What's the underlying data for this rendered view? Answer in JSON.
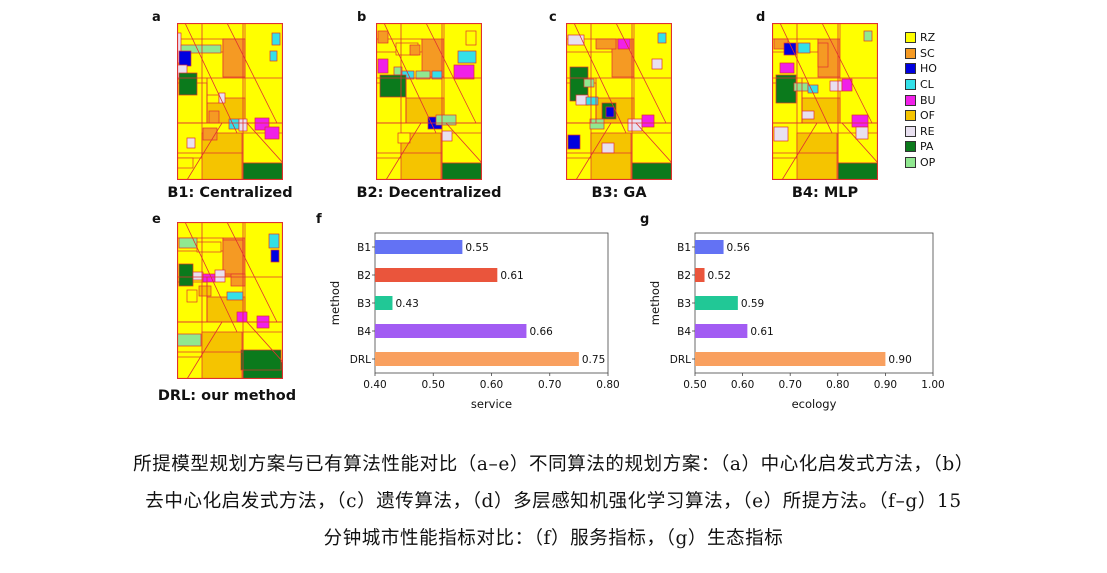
{
  "panels": {
    "maps": [
      {
        "letter": "a",
        "title": "B1: Centralized"
      },
      {
        "letter": "b",
        "title": "B2: Decentralized"
      },
      {
        "letter": "c",
        "title": "B3: GA"
      },
      {
        "letter": "d",
        "title": "B4: MLP"
      },
      {
        "letter": "e",
        "title": "DRL: our method"
      }
    ],
    "bar_letters": {
      "f": "f",
      "g": "g"
    }
  },
  "legend": [
    {
      "code": "RZ",
      "color": "#ffff00"
    },
    {
      "code": "SC",
      "color": "#f59a23"
    },
    {
      "code": "HO",
      "color": "#0000e0"
    },
    {
      "code": "CL",
      "color": "#33e0e8"
    },
    {
      "code": "BU",
      "color": "#f020e8"
    },
    {
      "code": "OF",
      "color": "#f5c400"
    },
    {
      "code": "RE",
      "color": "#e8e0f0"
    },
    {
      "code": "PA",
      "color": "#0b7a1c"
    },
    {
      "code": "OP",
      "color": "#90e890"
    }
  ],
  "chart_data": [
    {
      "type": "bar",
      "orientation": "horizontal",
      "categories": [
        "B1",
        "B2",
        "B3",
        "B4",
        "DRL"
      ],
      "values": [
        0.55,
        0.61,
        0.43,
        0.66,
        0.75
      ],
      "value_labels": [
        "0.55",
        "0.61",
        "0.43",
        "0.66",
        "0.75"
      ],
      "colors": [
        "#6372f4",
        "#ea553c",
        "#21c896",
        "#a25cf3",
        "#f9a05f"
      ],
      "xlabel": "service",
      "ylabel": "method",
      "xlim": [
        0.4,
        0.8
      ],
      "xticks": [
        "0.40",
        "0.50",
        "0.60",
        "0.70",
        "0.80"
      ],
      "grid": false,
      "legend": "none"
    },
    {
      "type": "bar",
      "orientation": "horizontal",
      "categories": [
        "B1",
        "B2",
        "B3",
        "B4",
        "DRL"
      ],
      "values": [
        0.56,
        0.52,
        0.59,
        0.61,
        0.9
      ],
      "value_labels": [
        "0.56",
        "0.52",
        "0.59",
        "0.61",
        "0.90"
      ],
      "colors": [
        "#6372f4",
        "#ea553c",
        "#21c896",
        "#a25cf3",
        "#f9a05f"
      ],
      "xlabel": "ecology",
      "ylabel": "method",
      "xlim": [
        0.5,
        1.0
      ],
      "xticks": [
        "0.50",
        "0.60",
        "0.70",
        "0.80",
        "0.90",
        "1.00"
      ],
      "grid": false,
      "legend": "none"
    }
  ],
  "caption": {
    "line1": "所提模型规划方案与已有算法性能对比（a–e）不同算法的规划方案：（a）中心化启发式方法，（b）",
    "line2": "去中心化启发式方法，（c）遗传算法，（d）多层感知机强化学习算法，（e）所提方法。（f–g）15",
    "line3": "分钟城市性能指标对比：（f）服务指标，（g）生态指标"
  }
}
